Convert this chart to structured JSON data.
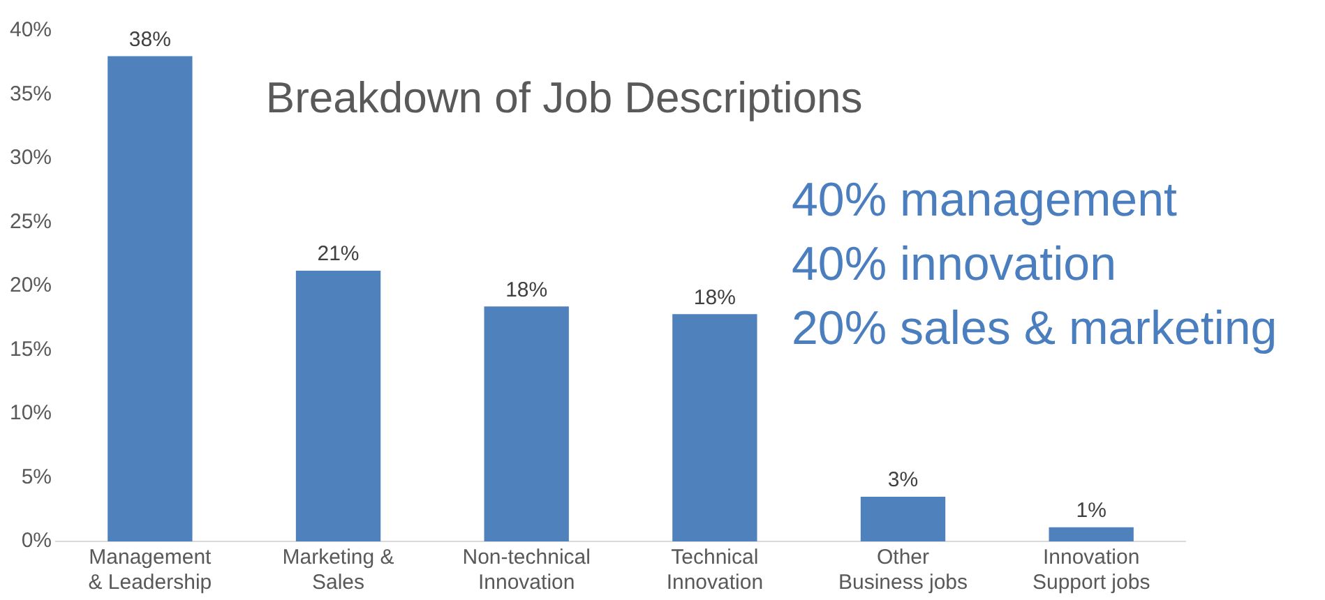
{
  "chart_data": {
    "type": "bar",
    "title": "Breakdown of Job Descriptions",
    "categories": [
      "Management & Leadership",
      "Marketing & Sales",
      "Non-technical Innovation",
      "Technical Innovation",
      "Other Business jobs",
      "Innovation Support jobs"
    ],
    "values": [
      38,
      21.2,
      18.4,
      17.8,
      3.5,
      1.1
    ],
    "value_labels": [
      "38%",
      "21%",
      "18%",
      "18%",
      "3%",
      "1%"
    ],
    "color": "#4f81bd",
    "ylim": [
      0,
      40
    ],
    "yticks": [
      {
        "value": 0,
        "label": "0%"
      },
      {
        "value": 5,
        "label": "5%"
      },
      {
        "value": 10,
        "label": "10%"
      },
      {
        "value": 15,
        "label": "15%"
      },
      {
        "value": 20,
        "label": "20%"
      },
      {
        "value": 25,
        "label": "25%"
      },
      {
        "value": 30,
        "label": "30%"
      },
      {
        "value": 35,
        "label": "35%"
      },
      {
        "value": 40,
        "label": "40%"
      }
    ],
    "grid": false,
    "legend": false,
    "annotations": [
      "40% management",
      "40% innovation",
      "20% sales & marketing"
    ]
  }
}
